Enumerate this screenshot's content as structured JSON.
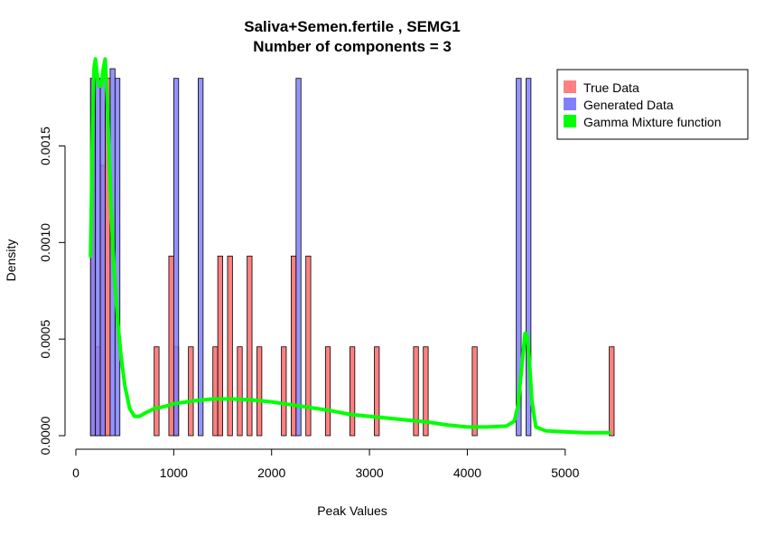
{
  "chart_data": {
    "type": "histogram",
    "title": "Saliva+Semen.fertile , SEMG1",
    "subtitle": "Number of components =  3",
    "xlabel": "Peak Values",
    "ylabel": "Density",
    "xlim": [
      0,
      5500
    ],
    "ylim": [
      0,
      0.0019
    ],
    "x_ticks": [
      0,
      1000,
      2000,
      3000,
      4000,
      5000
    ],
    "x_tick_labels": [
      "0",
      "1000",
      "2000",
      "3000",
      "4000",
      "5000"
    ],
    "y_ticks": [
      0.0,
      0.0005,
      0.001,
      0.0015
    ],
    "y_tick_labels": [
      "0.0000",
      "0.0005",
      "0.0010",
      "0.0015"
    ],
    "bin_width": 50,
    "legend": {
      "position": "top-right",
      "entries": [
        {
          "label": "True Data",
          "color": "#ff8080"
        },
        {
          "label": "Generated Data",
          "color": "#8080ff"
        },
        {
          "label": "Gamma Mixture function",
          "color": "#00ff00"
        }
      ]
    },
    "series": [
      {
        "name": "True Data",
        "color": "#ff8080",
        "bins": [
          {
            "x0": 150,
            "density": 0.00185
          },
          {
            "x0": 200,
            "density": 0.00046
          },
          {
            "x0": 250,
            "density": 0.0014
          },
          {
            "x0": 300,
            "density": 0.00185
          },
          {
            "x0": 800,
            "density": 0.00046
          },
          {
            "x0": 950,
            "density": 0.00093
          },
          {
            "x0": 1000,
            "density": 0.00046
          },
          {
            "x0": 1150,
            "density": 0.00046
          },
          {
            "x0": 1400,
            "density": 0.00046
          },
          {
            "x0": 1450,
            "density": 0.00093
          },
          {
            "x0": 1550,
            "density": 0.00093
          },
          {
            "x0": 1650,
            "density": 0.00046
          },
          {
            "x0": 1750,
            "density": 0.00093
          },
          {
            "x0": 1850,
            "density": 0.00046
          },
          {
            "x0": 2100,
            "density": 0.00046
          },
          {
            "x0": 2200,
            "density": 0.00093
          },
          {
            "x0": 2350,
            "density": 0.00093
          },
          {
            "x0": 2550,
            "density": 0.00046
          },
          {
            "x0": 2800,
            "density": 0.00046
          },
          {
            "x0": 3050,
            "density": 0.00046
          },
          {
            "x0": 3450,
            "density": 0.00046
          },
          {
            "x0": 3550,
            "density": 0.00046
          },
          {
            "x0": 4050,
            "density": 0.00046
          },
          {
            "x0": 5450,
            "density": 0.00046
          }
        ]
      },
      {
        "name": "Generated Data",
        "color": "#8080ff",
        "bins": [
          {
            "x0": 150,
            "density": 0.00185
          },
          {
            "x0": 200,
            "density": 0.00185
          },
          {
            "x0": 250,
            "density": 0.00185
          },
          {
            "x0": 350,
            "density": 0.0019
          },
          {
            "x0": 400,
            "density": 0.00185
          },
          {
            "x0": 1000,
            "density": 0.00185
          },
          {
            "x0": 1250,
            "density": 0.00185
          },
          {
            "x0": 2250,
            "density": 0.00185
          },
          {
            "x0": 4500,
            "density": 0.00185
          },
          {
            "x0": 4600,
            "density": 0.00185
          }
        ]
      },
      {
        "name": "Gamma Mixture function",
        "color": "#00ff00",
        "type": "line",
        "points": [
          [
            150,
            0.00093
          ],
          [
            160,
            0.00125
          ],
          [
            170,
            0.0016
          ],
          [
            185,
            0.0019
          ],
          [
            200,
            0.00195
          ],
          [
            220,
            0.00186
          ],
          [
            240,
            0.00181
          ],
          [
            260,
            0.00181
          ],
          [
            280,
            0.0019
          ],
          [
            300,
            0.00195
          ],
          [
            320,
            0.00175
          ],
          [
            340,
            0.00145
          ],
          [
            360,
            0.00118
          ],
          [
            380,
            0.00095
          ],
          [
            400,
            0.00078
          ],
          [
            430,
            0.00058
          ],
          [
            460,
            0.00042
          ],
          [
            500,
            0.00026
          ],
          [
            550,
            0.00014
          ],
          [
            600,
            0.0001
          ],
          [
            650,
            0.0001
          ],
          [
            700,
            0.000115
          ],
          [
            800,
            0.00014
          ],
          [
            900,
            0.00015
          ],
          [
            1000,
            0.000165
          ],
          [
            1200,
            0.00018
          ],
          [
            1400,
            0.00019
          ],
          [
            1600,
            0.00019
          ],
          [
            1800,
            0.000185
          ],
          [
            2000,
            0.000175
          ],
          [
            2200,
            0.00016
          ],
          [
            2400,
            0.000145
          ],
          [
            2600,
            0.00013
          ],
          [
            2800,
            0.00011
          ],
          [
            3000,
            0.0001
          ],
          [
            3200,
            9e-05
          ],
          [
            3400,
            8e-05
          ],
          [
            3600,
            7e-05
          ],
          [
            3800,
            5.5e-05
          ],
          [
            4000,
            4.5e-05
          ],
          [
            4200,
            4.5e-05
          ],
          [
            4400,
            5e-05
          ],
          [
            4480,
            7.5e-05
          ],
          [
            4520,
            0.00016
          ],
          [
            4560,
            0.00038
          ],
          [
            4590,
            0.00053
          ],
          [
            4610,
            0.00052
          ],
          [
            4630,
            0.00042
          ],
          [
            4660,
            0.00018
          ],
          [
            4700,
            4.5e-05
          ],
          [
            4800,
            2.5e-05
          ],
          [
            5000,
            2e-05
          ],
          [
            5200,
            1.5e-05
          ],
          [
            5450,
            1.5e-05
          ]
        ]
      }
    ]
  }
}
